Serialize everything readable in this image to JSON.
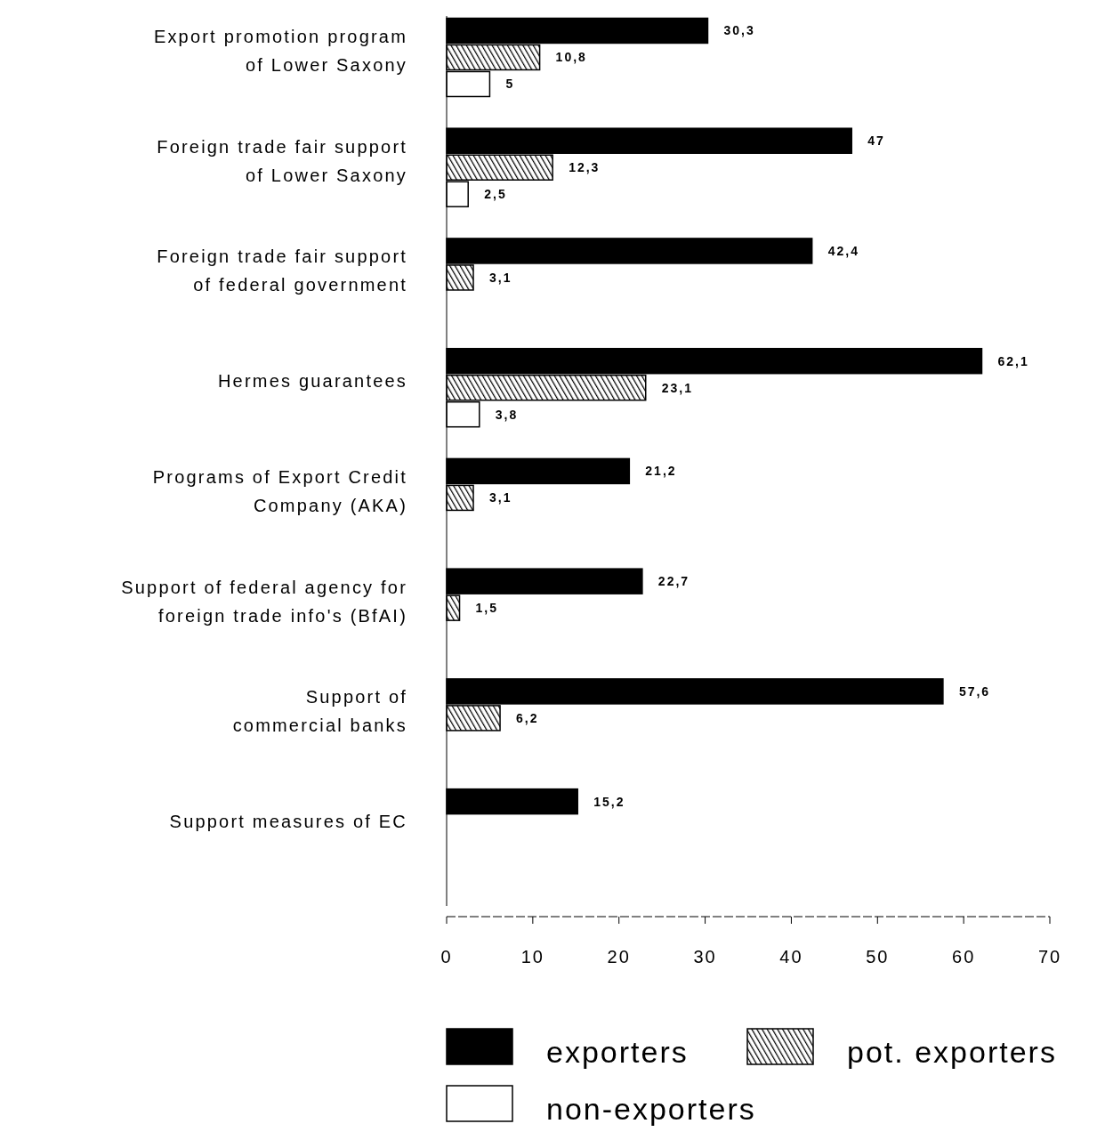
{
  "chart_data": {
    "type": "bar",
    "orientation": "horizontal",
    "categories": [
      "Export promotion program\nof Lower Saxony",
      "Foreign trade fair support\nof Lower Saxony",
      "Foreign trade fair support\nof federal government",
      "Hermes guarantees",
      "Programs of Export Credit\nCompany (AKA)",
      "Support of federal agency for\nforeign trade info's (BfAI)",
      "Support of\ncommercial banks",
      "Support measures of EC"
    ],
    "series": [
      {
        "name": "exporters",
        "color": "#000000",
        "values": [
          30.3,
          47,
          42.4,
          62.1,
          21.2,
          22.7,
          57.6,
          15.2
        ],
        "value_labels": [
          "30,3",
          "47",
          "42,4",
          "62,1",
          "21,2",
          "22,7",
          "57,6",
          "15,2"
        ]
      },
      {
        "name": "pot. exporters",
        "color": "#000000",
        "values": [
          10.8,
          12.3,
          3.1,
          23.1,
          3.1,
          1.5,
          6.2,
          null
        ],
        "value_labels": [
          "10,8",
          "12,3",
          "3,1",
          "23,1",
          "3,1",
          "1,5",
          "6,2",
          null
        ]
      },
      {
        "name": "non-exporters",
        "color": "#ffffff",
        "values": [
          5,
          2.5,
          null,
          3.8,
          null,
          null,
          null,
          null
        ],
        "value_labels": [
          "5",
          "2,5",
          null,
          "3,8",
          null,
          null,
          null,
          null
        ]
      }
    ],
    "xlim": [
      0,
      70
    ],
    "xticks": [
      0,
      10,
      20,
      30,
      40,
      50,
      60,
      70
    ],
    "grid": false,
    "legend": "bottom"
  }
}
